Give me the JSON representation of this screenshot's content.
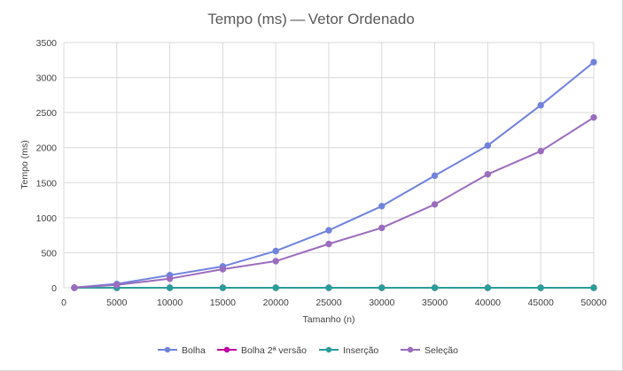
{
  "chart_data": {
    "type": "line",
    "title": "Tempo (ms) — Vetor Ordenado",
    "xlabel": "Tamanho (n)",
    "ylabel": "Tempo (ms)",
    "xlim": [
      0,
      50000
    ],
    "ylim": [
      0,
      3500
    ],
    "x_ticks": [
      0,
      5000,
      10000,
      15000,
      20000,
      25000,
      30000,
      35000,
      40000,
      45000,
      50000
    ],
    "y_ticks": [
      0,
      500,
      1000,
      1500,
      2000,
      2500,
      3000,
      3500
    ],
    "grid": true,
    "legend_position": "bottom",
    "x": [
      1000,
      5000,
      10000,
      15000,
      20000,
      25000,
      30000,
      35000,
      40000,
      45000,
      50000
    ],
    "series": [
      {
        "name": "Bolha",
        "color": "#6f82dc",
        "values": [
          2,
          55,
          180,
          305,
          525,
          820,
          1165,
          1600,
          2030,
          2605,
          3220
        ]
      },
      {
        "name": "Bolha 2ª versão",
        "color": "#c000a0",
        "values": [
          0,
          0,
          0,
          0,
          0,
          0,
          0,
          0,
          0,
          0,
          0
        ]
      },
      {
        "name": "Inserção",
        "color": "#2a9d9a",
        "values": [
          0,
          0,
          0,
          0,
          0,
          0,
          0,
          0,
          0,
          0,
          0
        ]
      },
      {
        "name": "Seleção",
        "color": "#9b6cbe",
        "values": [
          2,
          40,
          130,
          265,
          380,
          625,
          855,
          1190,
          1620,
          1950,
          2430
        ]
      }
    ]
  }
}
